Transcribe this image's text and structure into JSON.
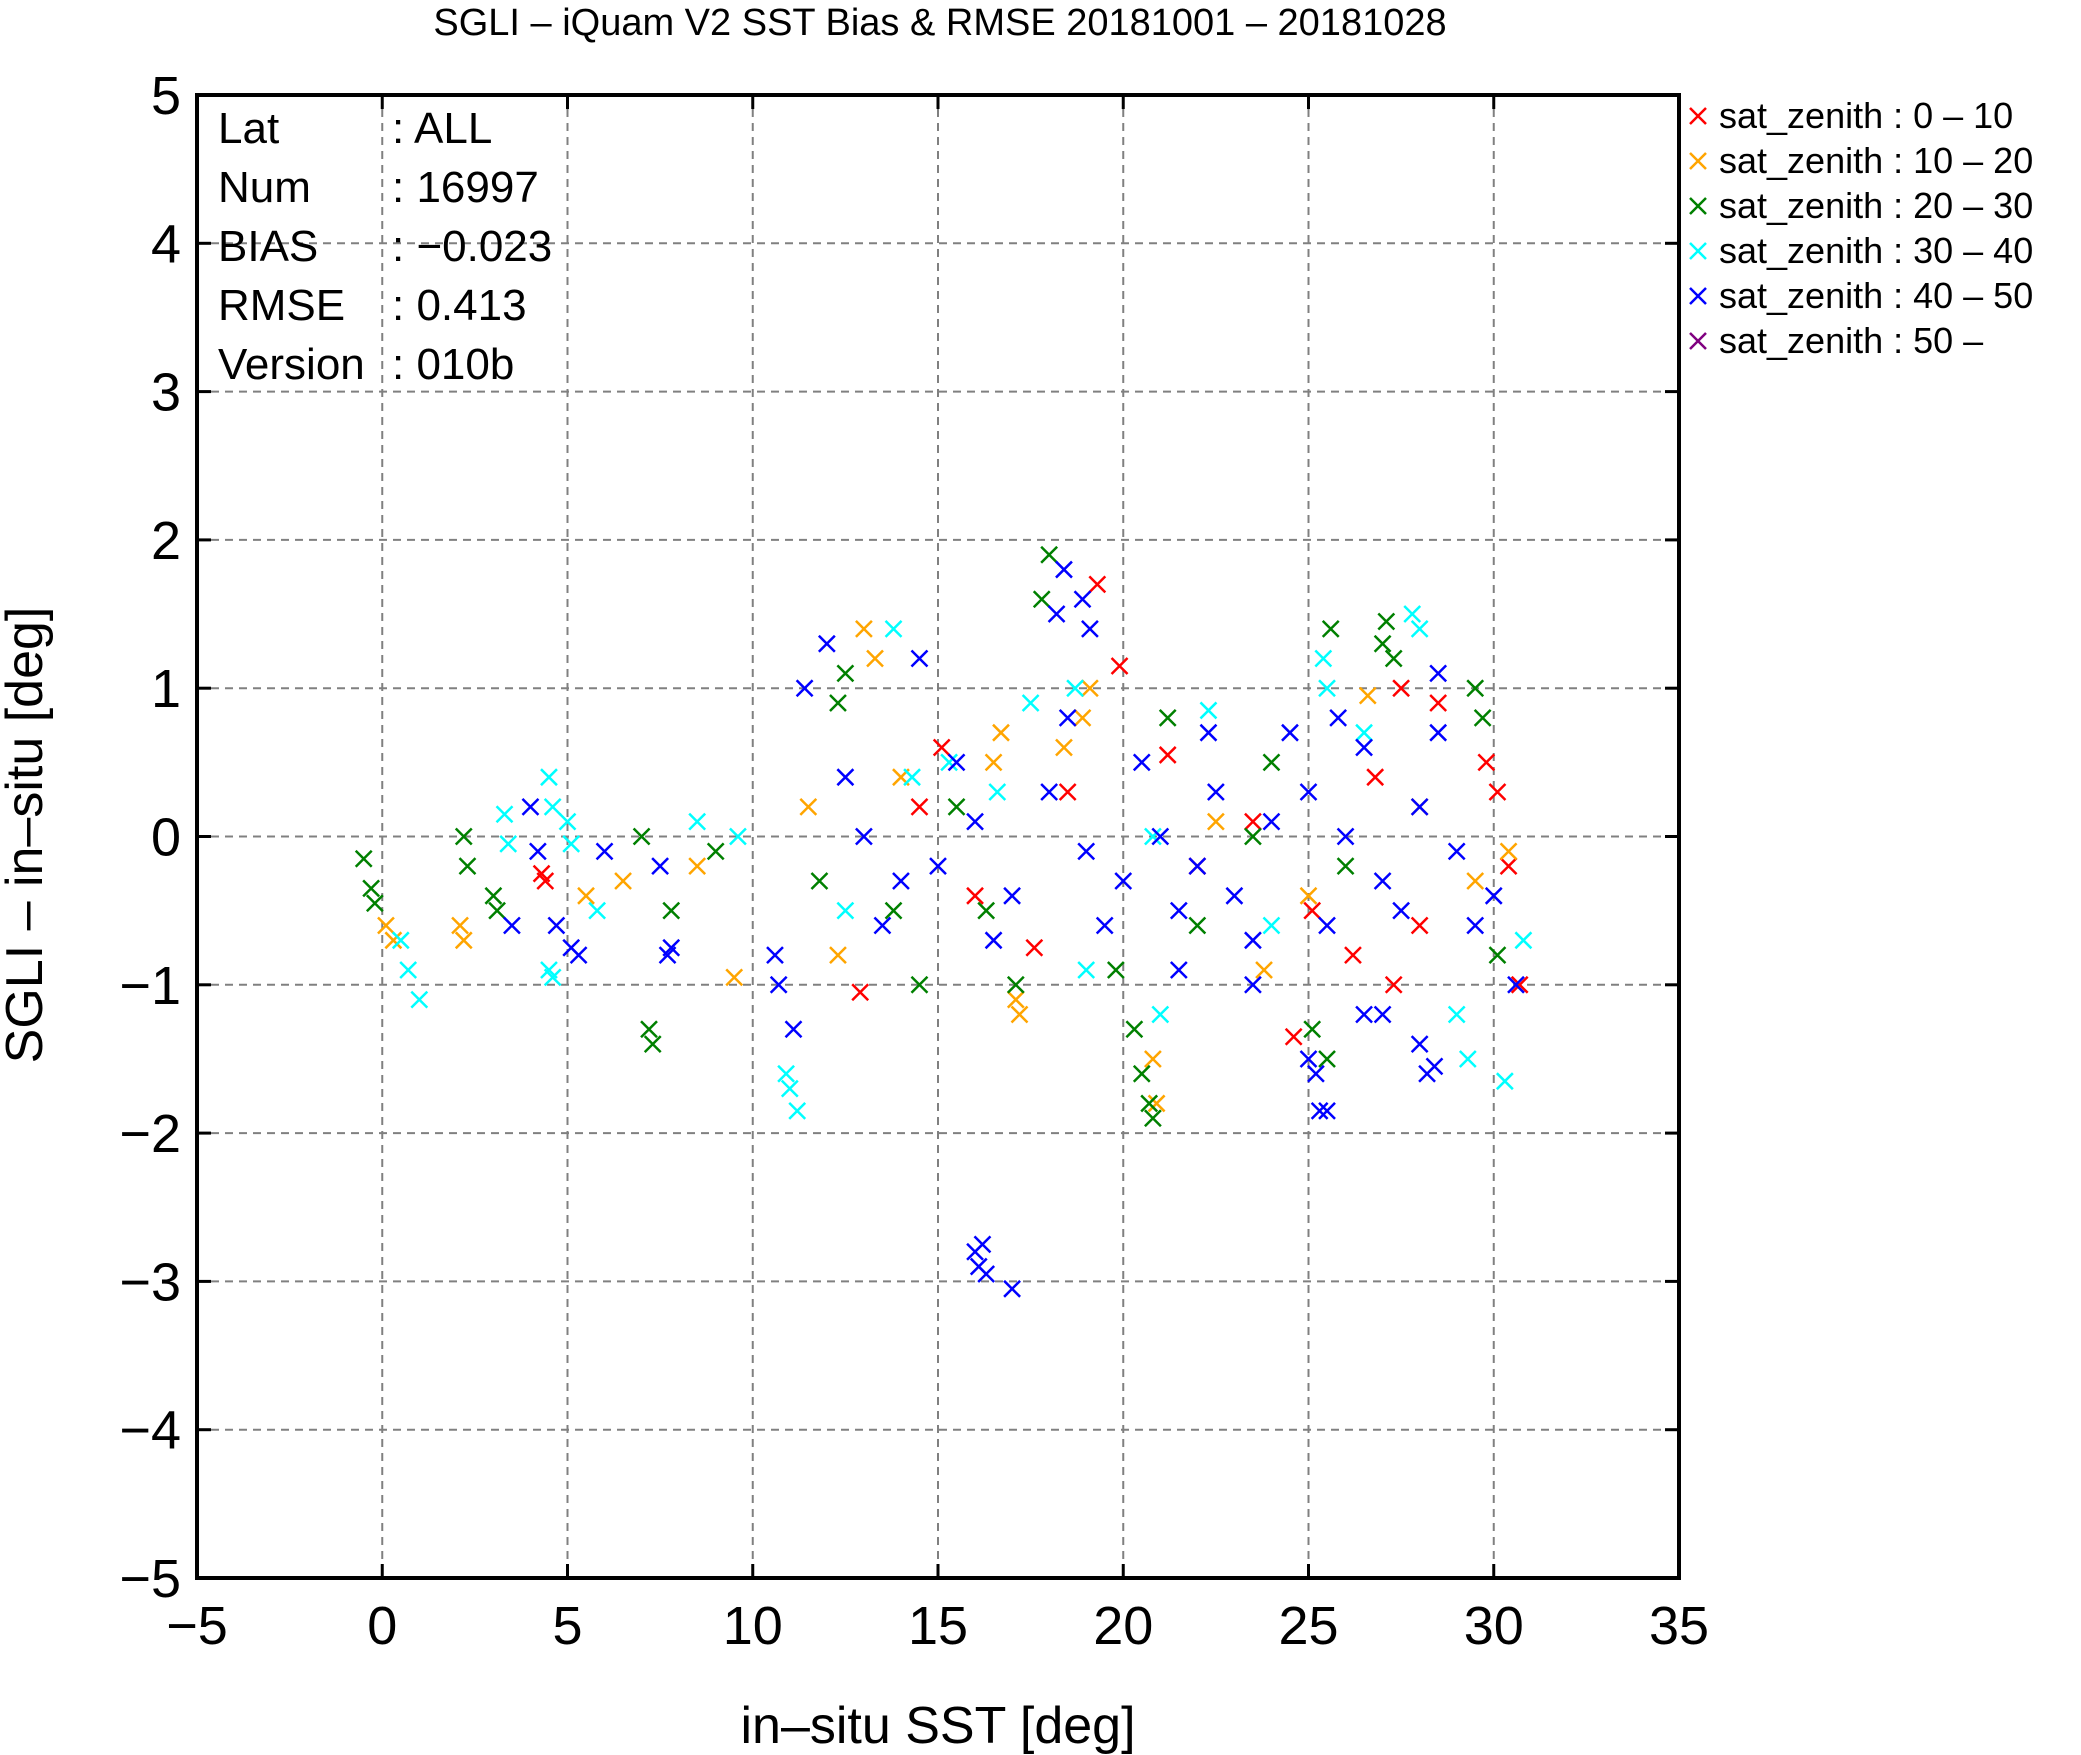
{
  "chart_data": {
    "type": "scatter",
    "title": "SGLI – iQuam V2 SST Bias & RMSE 20181001 – 20181028",
    "xlabel": "in–situ SST [deg]",
    "ylabel": "SGLI – in–situ [deg]",
    "xlim": [
      -5,
      35
    ],
    "ylim": [
      -5,
      5
    ],
    "xticks": [
      -5,
      0,
      5,
      10,
      15,
      20,
      25,
      30,
      35
    ],
    "yticks": [
      -5,
      -4,
      -3,
      -2,
      -1,
      0,
      1,
      2,
      3,
      4,
      5
    ],
    "xtick_labels": [
      "−5",
      "0",
      "5",
      "10",
      "15",
      "20",
      "25",
      "30",
      "35"
    ],
    "ytick_labels": [
      "−5",
      "−4",
      "−3",
      "−2",
      "−1",
      "0",
      "1",
      "2",
      "3",
      "4",
      "5"
    ],
    "grid": true,
    "marker": "x",
    "legend_position": "outside-top-right",
    "stats": [
      {
        "label": "Lat",
        "value": ": ALL"
      },
      {
        "label": "Num",
        "value": ": 16997"
      },
      {
        "label": "BIAS",
        "value": ": −0.023"
      },
      {
        "label": "RMSE",
        "value": ": 0.413"
      },
      {
        "label": "Version",
        "value": ": 010b"
      }
    ],
    "series": [
      {
        "name": "sat_zenith :  0 – 10",
        "color": "#ff0000",
        "points": [
          [
            4.3,
            -0.25
          ],
          [
            4.4,
            -0.3
          ],
          [
            12.9,
            -1.05
          ],
          [
            15.1,
            0.6
          ],
          [
            17.6,
            -0.75
          ],
          [
            19.3,
            1.7
          ],
          [
            19.9,
            1.15
          ],
          [
            21.2,
            0.55
          ],
          [
            24.6,
            -1.35
          ],
          [
            25.1,
            -0.5
          ],
          [
            26.2,
            -0.8
          ],
          [
            27.3,
            -1.0
          ],
          [
            28.0,
            -0.6
          ],
          [
            29.8,
            0.5
          ],
          [
            30.1,
            0.3
          ],
          [
            30.4,
            -0.2
          ],
          [
            30.7,
            -1.0
          ],
          [
            27.5,
            1.0
          ],
          [
            28.5,
            0.9
          ],
          [
            22.0,
            -0.2
          ],
          [
            18.5,
            0.3
          ],
          [
            14.5,
            0.2
          ],
          [
            16.0,
            -0.4
          ],
          [
            23.5,
            0.1
          ],
          [
            26.8,
            0.4
          ]
        ]
      },
      {
        "name": "sat_zenith : 10 – 20",
        "color": "#ffa500",
        "points": [
          [
            0.1,
            -0.6
          ],
          [
            0.3,
            -0.7
          ],
          [
            2.1,
            -0.6
          ],
          [
            2.2,
            -0.7
          ],
          [
            5.5,
            -0.4
          ],
          [
            6.5,
            -0.3
          ],
          [
            8.5,
            -0.2
          ],
          [
            9.5,
            -0.95
          ],
          [
            12.3,
            -0.8
          ],
          [
            13.0,
            1.4
          ],
          [
            13.3,
            1.2
          ],
          [
            16.5,
            0.5
          ],
          [
            16.7,
            0.7
          ],
          [
            17.1,
            -1.1
          ],
          [
            17.2,
            -1.2
          ],
          [
            18.4,
            0.6
          ],
          [
            18.9,
            0.8
          ],
          [
            19.1,
            1.0
          ],
          [
            20.8,
            -1.5
          ],
          [
            20.9,
            -1.8
          ],
          [
            23.8,
            -0.9
          ],
          [
            26.6,
            0.95
          ],
          [
            28.0,
            0.2
          ],
          [
            29.5,
            -0.3
          ],
          [
            30.4,
            -0.1
          ],
          [
            14.0,
            0.4
          ],
          [
            11.5,
            0.2
          ],
          [
            22.5,
            0.1
          ],
          [
            25.0,
            -0.4
          ]
        ]
      },
      {
        "name": "sat_zenith : 20 – 30",
        "color": "#008000",
        "points": [
          [
            -0.5,
            -0.15
          ],
          [
            -0.3,
            -0.35
          ],
          [
            -0.2,
            -0.45
          ],
          [
            2.2,
            0.0
          ],
          [
            2.3,
            -0.2
          ],
          [
            3.0,
            -0.4
          ],
          [
            3.1,
            -0.5
          ],
          [
            7.0,
            0.0
          ],
          [
            7.2,
            -1.3
          ],
          [
            7.3,
            -1.4
          ],
          [
            7.8,
            -0.5
          ],
          [
            9.0,
            -0.1
          ],
          [
            11.8,
            -0.3
          ],
          [
            12.3,
            0.9
          ],
          [
            12.5,
            1.1
          ],
          [
            14.5,
            -1.0
          ],
          [
            16.3,
            -0.5
          ],
          [
            17.1,
            -1.0
          ],
          [
            17.8,
            1.6
          ],
          [
            18.0,
            1.9
          ],
          [
            19.8,
            -0.9
          ],
          [
            20.3,
            -1.3
          ],
          [
            20.5,
            -1.6
          ],
          [
            20.7,
            -1.8
          ],
          [
            20.8,
            -1.9
          ],
          [
            21.2,
            0.8
          ],
          [
            23.5,
            0.0
          ],
          [
            25.1,
            -1.3
          ],
          [
            25.5,
            -1.5
          ],
          [
            25.6,
            1.4
          ],
          [
            27.0,
            1.3
          ],
          [
            27.1,
            1.45
          ],
          [
            27.3,
            1.2
          ],
          [
            29.5,
            1.0
          ],
          [
            29.7,
            0.8
          ],
          [
            30.1,
            -0.8
          ],
          [
            15.5,
            0.2
          ],
          [
            22.0,
            -0.6
          ],
          [
            26.0,
            -0.2
          ],
          [
            13.8,
            -0.5
          ],
          [
            24.0,
            0.5
          ]
        ]
      },
      {
        "name": "sat_zenith : 30 – 40",
        "color": "#00ffff",
        "points": [
          [
            0.5,
            -0.7
          ],
          [
            0.7,
            -0.9
          ],
          [
            1.0,
            -1.1
          ],
          [
            3.3,
            0.15
          ],
          [
            3.4,
            -0.05
          ],
          [
            4.5,
            0.4
          ],
          [
            4.6,
            0.2
          ],
          [
            4.5,
            -0.9
          ],
          [
            4.6,
            -0.95
          ],
          [
            5.0,
            0.1
          ],
          [
            5.1,
            -0.05
          ],
          [
            5.8,
            -0.5
          ],
          [
            8.5,
            0.1
          ],
          [
            9.6,
            0.0
          ],
          [
            10.9,
            -1.6
          ],
          [
            11.0,
            -1.7
          ],
          [
            11.2,
            -1.85
          ],
          [
            13.8,
            1.4
          ],
          [
            14.3,
            0.4
          ],
          [
            15.3,
            0.5
          ],
          [
            16.6,
            0.3
          ],
          [
            17.5,
            0.9
          ],
          [
            18.7,
            1.0
          ],
          [
            20.8,
            0.0
          ],
          [
            21.0,
            -1.2
          ],
          [
            22.3,
            0.85
          ],
          [
            25.4,
            1.2
          ],
          [
            25.5,
            1.0
          ],
          [
            27.8,
            1.5
          ],
          [
            28.0,
            1.4
          ],
          [
            29.0,
            -1.2
          ],
          [
            29.3,
            -1.5
          ],
          [
            30.3,
            -1.65
          ],
          [
            30.8,
            -0.7
          ],
          [
            12.5,
            -0.5
          ],
          [
            19.0,
            -0.9
          ],
          [
            24.0,
            -0.6
          ],
          [
            26.5,
            0.7
          ]
        ]
      },
      {
        "name": "sat_zenith : 40 – 50",
        "color": "#0000ff",
        "points": [
          [
            3.5,
            -0.6
          ],
          [
            4.0,
            0.2
          ],
          [
            4.2,
            -0.1
          ],
          [
            4.7,
            -0.6
          ],
          [
            5.1,
            -0.75
          ],
          [
            5.3,
            -0.8
          ],
          [
            6.0,
            -0.1
          ],
          [
            7.5,
            -0.2
          ],
          [
            7.7,
            -0.8
          ],
          [
            7.8,
            -0.75
          ],
          [
            10.6,
            -0.8
          ],
          [
            10.7,
            -1.0
          ],
          [
            11.1,
            -1.3
          ],
          [
            11.4,
            1.0
          ],
          [
            12.0,
            1.3
          ],
          [
            14.5,
            1.2
          ],
          [
            16.0,
            -2.8
          ],
          [
            16.1,
            -2.9
          ],
          [
            16.2,
            -2.75
          ],
          [
            16.3,
            -2.95
          ],
          [
            17.0,
            -3.05
          ],
          [
            18.2,
            1.5
          ],
          [
            18.4,
            1.8
          ],
          [
            18.9,
            1.6
          ],
          [
            19.1,
            1.4
          ],
          [
            21.5,
            -0.9
          ],
          [
            22.3,
            0.7
          ],
          [
            23.5,
            -1.0
          ],
          [
            25.0,
            -1.5
          ],
          [
            25.2,
            -1.6
          ],
          [
            25.3,
            -1.85
          ],
          [
            25.5,
            -1.85
          ],
          [
            25.8,
            0.8
          ],
          [
            26.5,
            -1.2
          ],
          [
            27.0,
            -1.2
          ],
          [
            28.0,
            -1.4
          ],
          [
            28.2,
            -1.6
          ],
          [
            28.4,
            -1.55
          ],
          [
            28.5,
            1.1
          ],
          [
            30.6,
            -1.0
          ],
          [
            13.0,
            0.0
          ],
          [
            14.0,
            -0.3
          ],
          [
            15.0,
            -0.2
          ],
          [
            16.0,
            0.1
          ],
          [
            17.0,
            -0.4
          ],
          [
            18.0,
            0.3
          ],
          [
            19.0,
            -0.1
          ],
          [
            20.0,
            -0.3
          ],
          [
            21.0,
            0.0
          ],
          [
            22.0,
            -0.2
          ],
          [
            23.0,
            -0.4
          ],
          [
            24.0,
            0.1
          ],
          [
            25.0,
            0.3
          ],
          [
            26.0,
            0.0
          ],
          [
            27.0,
            -0.3
          ],
          [
            28.0,
            0.2
          ],
          [
            29.0,
            -0.1
          ],
          [
            30.0,
            -0.4
          ],
          [
            12.5,
            0.4
          ],
          [
            13.5,
            -0.6
          ],
          [
            15.5,
            0.5
          ],
          [
            16.5,
            -0.7
          ],
          [
            18.5,
            0.8
          ],
          [
            19.5,
            -0.6
          ],
          [
            20.5,
            0.5
          ],
          [
            21.5,
            -0.5
          ],
          [
            22.5,
            0.3
          ],
          [
            23.5,
            -0.7
          ],
          [
            24.5,
            0.7
          ],
          [
            25.5,
            -0.6
          ],
          [
            26.5,
            0.6
          ],
          [
            27.5,
            -0.5
          ],
          [
            28.5,
            0.7
          ],
          [
            29.5,
            -0.6
          ]
        ]
      },
      {
        "name": "sat_zenith : 50 –",
        "color": "#800080",
        "points": []
      }
    ]
  }
}
